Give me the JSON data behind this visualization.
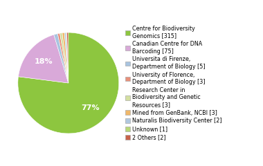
{
  "labels": [
    "Centre for Biodiversity\nGenomics [315]",
    "Canadian Centre for DNA\nBarcoding [75]",
    "Universita di Firenze,\nDepartment of Biology [5]",
    "University of Florence,\nDepartment of Biology [3]",
    "Research Center in\nBiodiversity and Genetic\nResources [3]",
    "Mined from GenBank, NCBI [3]",
    "Naturalis Biodiversity Center [2]",
    "Unknown [1]",
    "2 Others [2]"
  ],
  "values": [
    315,
    75,
    5,
    3,
    3,
    3,
    2,
    1,
    2
  ],
  "colors": [
    "#8dc63f",
    "#d9a9d9",
    "#a8c4e0",
    "#e8907a",
    "#d4dfa0",
    "#f0b86a",
    "#b0c8e0",
    "#b8d878",
    "#c8624a"
  ],
  "autopct_threshold": 5,
  "pct_labels": [
    "77%",
    "18%",
    "",
    "",
    "",
    "",
    "",
    "",
    ""
  ],
  "background_color": "#ffffff",
  "legend_fontsize": 5.8,
  "pie_text_fontsize": 8
}
